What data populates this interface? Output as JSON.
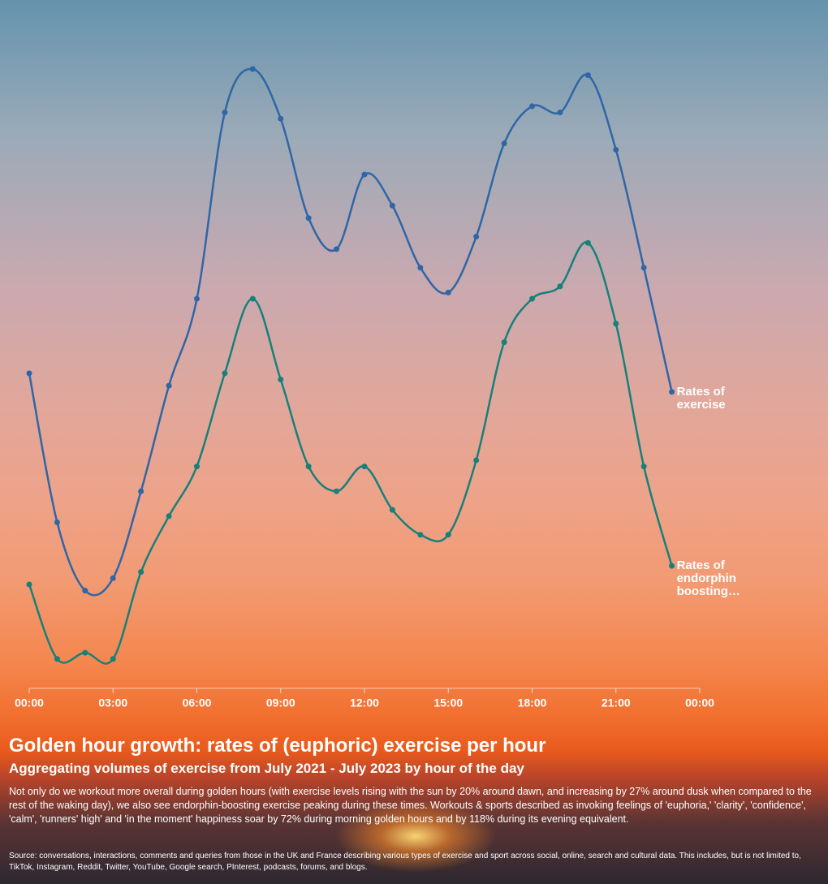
{
  "chart_data": {
    "type": "line",
    "title": "Golden hour growth: rates of (euphoric) exercise per hour",
    "subtitle": "Aggregating volumes of exercise from July 2021 - July 2023 by hour of the day",
    "description": "Not only do we workout more overall during golden hours (with exercise levels rising with the sun by 20% around dawn, and increasing by 27% around dusk when compared to the rest of the waking day), we also see endorphin-boosting exercise peaking during these times. Workouts & sports described as invoking feelings of 'euphoria,' 'clarity', 'confidence', 'calm', 'runners' high' and 'in the moment' happiness soar by 72% during morning golden hours and by 118% during its evening equivalent.",
    "source": "Source: conversations, interactions, comments and queries from those in the UK and France describing various types of exercise and sport across social, online, search and cultural data. This includes, but is not limited to, TikTok, Instagram, Reddit, Twitter, YouTube, Google search, PInterest, podcasts, forums, and blogs.",
    "x": [
      0,
      1,
      2,
      3,
      4,
      5,
      6,
      7,
      8,
      9,
      10,
      11,
      12,
      13,
      14,
      15,
      16,
      17,
      18,
      19,
      20,
      21,
      22,
      23
    ],
    "series": [
      {
        "name": "Rates of exercise",
        "color": "#2f66a6",
        "values": [
          51,
          27,
          16,
          18,
          32,
          49,
          63,
          93,
          100,
          92,
          76,
          71,
          83,
          78,
          68,
          64,
          73,
          88,
          94,
          93,
          99,
          87,
          68,
          48
        ]
      },
      {
        "name": "Rates of endorphin boosting…",
        "color": "#17807a",
        "values": [
          17,
          5,
          6,
          5,
          19,
          28,
          36,
          51,
          63,
          50,
          36,
          32,
          36,
          29,
          25,
          25,
          37,
          56,
          63,
          65,
          72,
          59,
          36,
          20
        ]
      }
    ],
    "xlim": [
      0,
      24
    ],
    "xticks": [
      {
        "value": 0,
        "label": "00:00"
      },
      {
        "value": 3,
        "label": "03:00"
      },
      {
        "value": 6,
        "label": "06:00"
      },
      {
        "value": 9,
        "label": "09:00"
      },
      {
        "value": 12,
        "label": "12:00"
      },
      {
        "value": 15,
        "label": "15:00"
      },
      {
        "value": 18,
        "label": "18:00"
      },
      {
        "value": 21,
        "label": "21:00"
      },
      {
        "value": 24,
        "label": "00:00"
      }
    ],
    "ylim": [
      0,
      100
    ]
  }
}
